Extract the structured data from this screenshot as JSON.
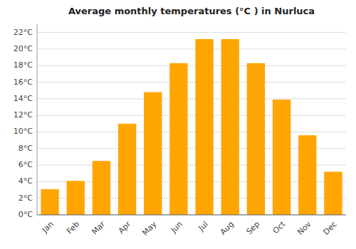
{
  "chart_data": {
    "type": "bar",
    "title": "Average monthly temperatures (°C ) in Nurluca",
    "categories": [
      "Jan",
      "Feb",
      "Mar",
      "Apr",
      "May",
      "Jun",
      "Jul",
      "Aug",
      "Sep",
      "Oct",
      "Nov",
      "Dec"
    ],
    "values": [
      3.1,
      4.1,
      6.5,
      11.0,
      14.8,
      18.3,
      21.2,
      21.2,
      18.3,
      13.9,
      9.6,
      5.2
    ],
    "color": "#FFA500",
    "ylim": [
      0,
      23
    ],
    "yticks": [
      {
        "value": 0,
        "label": "0°C"
      },
      {
        "value": 2,
        "label": "2°C"
      },
      {
        "value": 4,
        "label": "4°C"
      },
      {
        "value": 6,
        "label": "6°C"
      },
      {
        "value": 8,
        "label": "8°C"
      },
      {
        "value": 10,
        "label": "10°C"
      },
      {
        "value": 12,
        "label": "12°C"
      },
      {
        "value": 14,
        "label": "14°C"
      },
      {
        "value": 16,
        "label": "16°C"
      },
      {
        "value": 18,
        "label": "18°C"
      },
      {
        "value": 20,
        "label": "20°C"
      },
      {
        "value": 22,
        "label": "22°C"
      }
    ],
    "grid": true
  }
}
